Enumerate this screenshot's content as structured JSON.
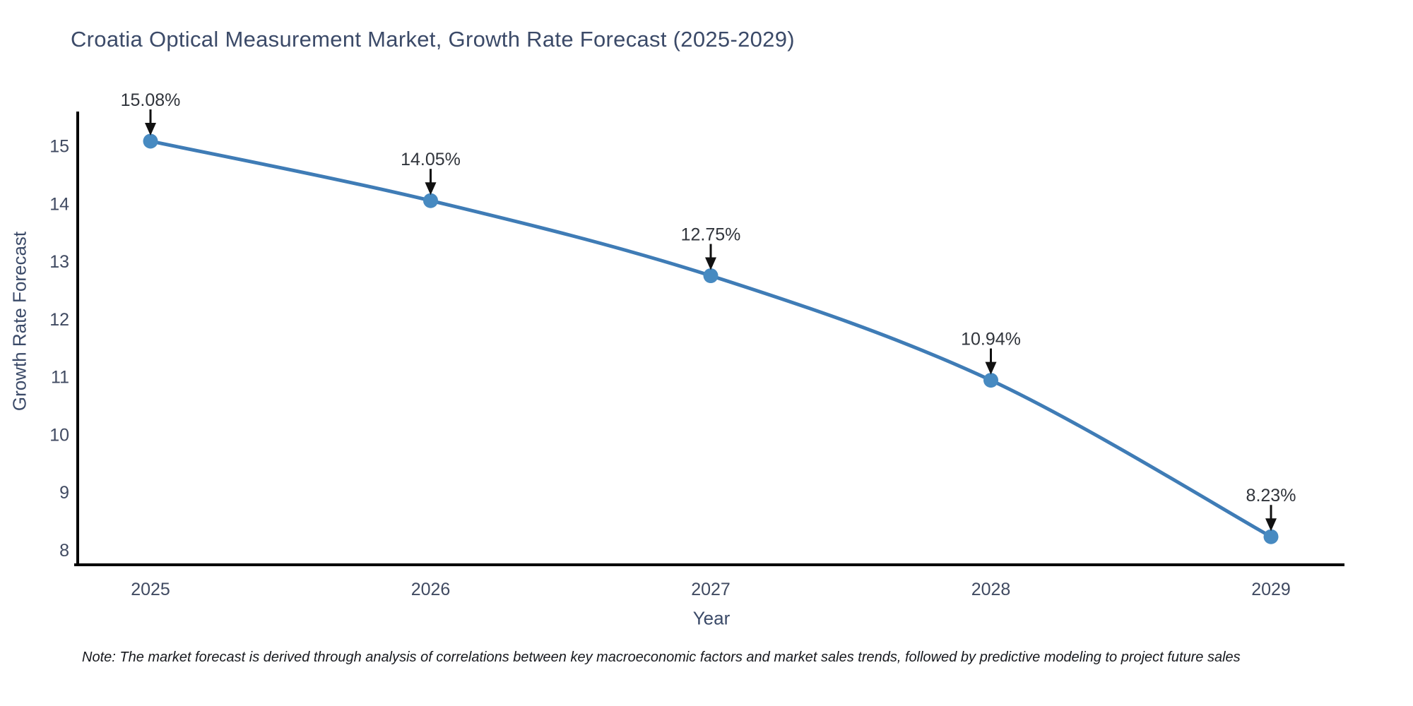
{
  "chart": {
    "title": "Croatia Optical Measurement Market, Growth Rate Forecast (2025-2029)",
    "x_axis_title": "Year",
    "y_axis_title": "Growth Rate Forecast",
    "footnote": "Note: The market forecast is derived through analysis of correlations between key macroeconomic factors and market sales trends, followed by predictive modeling to project future sales",
    "colors": {
      "line": "#3f7cb6",
      "marker": "#478ac1",
      "axis": "#000000",
      "arrow": "#111111",
      "title_text": "#3b4a68",
      "axis_title_text": "#3b4a68",
      "tick_text": "#404a61",
      "annotation_text": "#30343b",
      "note_text": "#17191e",
      "background": "#ffffff"
    }
  },
  "chart_data": {
    "type": "line",
    "title": "Croatia Optical Measurement Market, Growth Rate Forecast (2025-2029)",
    "x": [
      "2025",
      "2026",
      "2027",
      "2028",
      "2029"
    ],
    "values": [
      15.08,
      14.05,
      12.75,
      10.94,
      8.23
    ],
    "point_labels": [
      "15.08%",
      "14.05%",
      "12.75%",
      "10.94%",
      "8.23%"
    ],
    "xlabel": "Year",
    "ylabel": "Growth Rate Forecast",
    "yticks": [
      8,
      9,
      10,
      11,
      12,
      13,
      14,
      15
    ],
    "ylim": [
      7.7,
      15.6
    ],
    "grid": false,
    "legend_position": "none",
    "line_shape": "spline",
    "markers": "circle",
    "annotation_arrows": true,
    "note": "Note: The market forecast is derived through analysis of correlations between key macroeconomic factors and market sales trends, followed by predictive modeling to project future sales"
  }
}
